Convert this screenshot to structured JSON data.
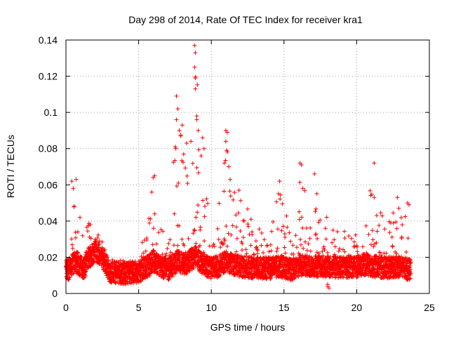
{
  "chart_data": {
    "type": "scatter",
    "title": "Day 298 of 2014, Rate Of TEC Index for receiver kra1",
    "xlabel": "GPS time / hours",
    "ylabel": "ROTI / TECUs",
    "xlim": [
      0,
      25
    ],
    "ylim": [
      0,
      0.14
    ],
    "xticks": [
      "0",
      "5",
      "10",
      "15",
      "20",
      "25"
    ],
    "yticks": [
      "0",
      "0.02",
      "0.04",
      "0.06",
      "0.08",
      "0.1",
      "0.12",
      "0.14"
    ],
    "grid": true,
    "marker": "+",
    "series": [
      {
        "name": "ROTI",
        "color": "#ff0000",
        "profile": [
          {
            "t": 0.0,
            "base": 0.013,
            "top": 0.02
          },
          {
            "t": 0.3,
            "base": 0.014,
            "top": 0.022
          },
          {
            "t": 0.6,
            "base": 0.018,
            "top": 0.063
          },
          {
            "t": 0.9,
            "base": 0.016,
            "top": 0.048
          },
          {
            "t": 1.2,
            "base": 0.013,
            "top": 0.03
          },
          {
            "t": 1.6,
            "base": 0.02,
            "top": 0.043
          },
          {
            "t": 2.0,
            "base": 0.024,
            "top": 0.035
          },
          {
            "t": 2.5,
            "base": 0.02,
            "top": 0.032
          },
          {
            "t": 3.0,
            "base": 0.012,
            "top": 0.02
          },
          {
            "t": 4.0,
            "base": 0.011,
            "top": 0.018
          },
          {
            "t": 5.0,
            "base": 0.012,
            "top": 0.02
          },
          {
            "t": 5.8,
            "base": 0.016,
            "top": 0.05
          },
          {
            "t": 6.0,
            "base": 0.018,
            "top": 0.065
          },
          {
            "t": 6.5,
            "base": 0.015,
            "top": 0.04
          },
          {
            "t": 7.0,
            "base": 0.013,
            "top": 0.035
          },
          {
            "t": 7.7,
            "base": 0.018,
            "top": 0.109
          },
          {
            "t": 8.2,
            "base": 0.016,
            "top": 0.08
          },
          {
            "t": 8.9,
            "base": 0.02,
            "top": 0.137
          },
          {
            "t": 9.5,
            "base": 0.016,
            "top": 0.06
          },
          {
            "t": 10.0,
            "base": 0.014,
            "top": 0.04
          },
          {
            "t": 10.5,
            "base": 0.015,
            "top": 0.05
          },
          {
            "t": 11.0,
            "base": 0.018,
            "top": 0.09
          },
          {
            "t": 11.5,
            "base": 0.016,
            "top": 0.06
          },
          {
            "t": 12.0,
            "base": 0.015,
            "top": 0.055
          },
          {
            "t": 13.0,
            "base": 0.014,
            "top": 0.038
          },
          {
            "t": 14.0,
            "base": 0.014,
            "top": 0.035
          },
          {
            "t": 14.7,
            "base": 0.015,
            "top": 0.062
          },
          {
            "t": 15.5,
            "base": 0.013,
            "top": 0.03
          },
          {
            "t": 16.2,
            "base": 0.016,
            "top": 0.072
          },
          {
            "t": 17.0,
            "base": 0.015,
            "top": 0.066
          },
          {
            "t": 18.0,
            "base": 0.015,
            "top": 0.04
          },
          {
            "t": 19.0,
            "base": 0.014,
            "top": 0.035
          },
          {
            "t": 20.0,
            "base": 0.015,
            "top": 0.035
          },
          {
            "t": 20.5,
            "base": 0.016,
            "top": 0.04
          },
          {
            "t": 21.2,
            "base": 0.015,
            "top": 0.072
          },
          {
            "t": 22.0,
            "base": 0.014,
            "top": 0.038
          },
          {
            "t": 22.7,
            "base": 0.015,
            "top": 0.053
          },
          {
            "t": 23.3,
            "base": 0.014,
            "top": 0.05
          },
          {
            "t": 23.7,
            "base": 0.013,
            "top": 0.022
          }
        ],
        "outliers": [
          {
            "x": 0.4,
            "y": 0.062
          },
          {
            "x": 0.7,
            "y": 0.063
          },
          {
            "x": 0.5,
            "y": 0.058
          },
          {
            "x": 6.0,
            "y": 0.064
          },
          {
            "x": 6.1,
            "y": 0.065
          },
          {
            "x": 5.9,
            "y": 0.056
          },
          {
            "x": 7.6,
            "y": 0.109
          },
          {
            "x": 7.7,
            "y": 0.102
          },
          {
            "x": 7.6,
            "y": 0.096
          },
          {
            "x": 7.8,
            "y": 0.09
          },
          {
            "x": 8.0,
            "y": 0.093
          },
          {
            "x": 7.9,
            "y": 0.087
          },
          {
            "x": 8.3,
            "y": 0.083
          },
          {
            "x": 8.6,
            "y": 0.084
          },
          {
            "x": 8.1,
            "y": 0.077
          },
          {
            "x": 8.85,
            "y": 0.137
          },
          {
            "x": 8.9,
            "y": 0.133
          },
          {
            "x": 8.85,
            "y": 0.125
          },
          {
            "x": 8.9,
            "y": 0.119
          },
          {
            "x": 8.9,
            "y": 0.113
          },
          {
            "x": 9.0,
            "y": 0.098
          },
          {
            "x": 9.0,
            "y": 0.096
          },
          {
            "x": 9.1,
            "y": 0.09
          },
          {
            "x": 9.4,
            "y": 0.086
          },
          {
            "x": 9.5,
            "y": 0.08
          },
          {
            "x": 9.3,
            "y": 0.076
          },
          {
            "x": 11.0,
            "y": 0.09
          },
          {
            "x": 11.1,
            "y": 0.089
          },
          {
            "x": 11.0,
            "y": 0.084
          },
          {
            "x": 11.05,
            "y": 0.079
          },
          {
            "x": 10.9,
            "y": 0.072
          },
          {
            "x": 11.2,
            "y": 0.07
          },
          {
            "x": 11.3,
            "y": 0.063
          },
          {
            "x": 11.9,
            "y": 0.057
          },
          {
            "x": 14.7,
            "y": 0.062
          },
          {
            "x": 16.1,
            "y": 0.072
          },
          {
            "x": 16.2,
            "y": 0.071
          },
          {
            "x": 16.3,
            "y": 0.058
          },
          {
            "x": 17.1,
            "y": 0.066
          },
          {
            "x": 21.2,
            "y": 0.072
          },
          {
            "x": 21.2,
            "y": 0.053
          },
          {
            "x": 22.8,
            "y": 0.053
          },
          {
            "x": 22.9,
            "y": 0.047
          },
          {
            "x": 23.5,
            "y": 0.05
          },
          {
            "x": 23.6,
            "y": 0.049
          },
          {
            "x": 18.3,
            "y": 0.028
          },
          {
            "x": 18.0,
            "y": 0.004
          },
          {
            "x": 18.1,
            "y": 0.003
          },
          {
            "x": 18.0,
            "y": 0.005
          }
        ]
      }
    ]
  }
}
